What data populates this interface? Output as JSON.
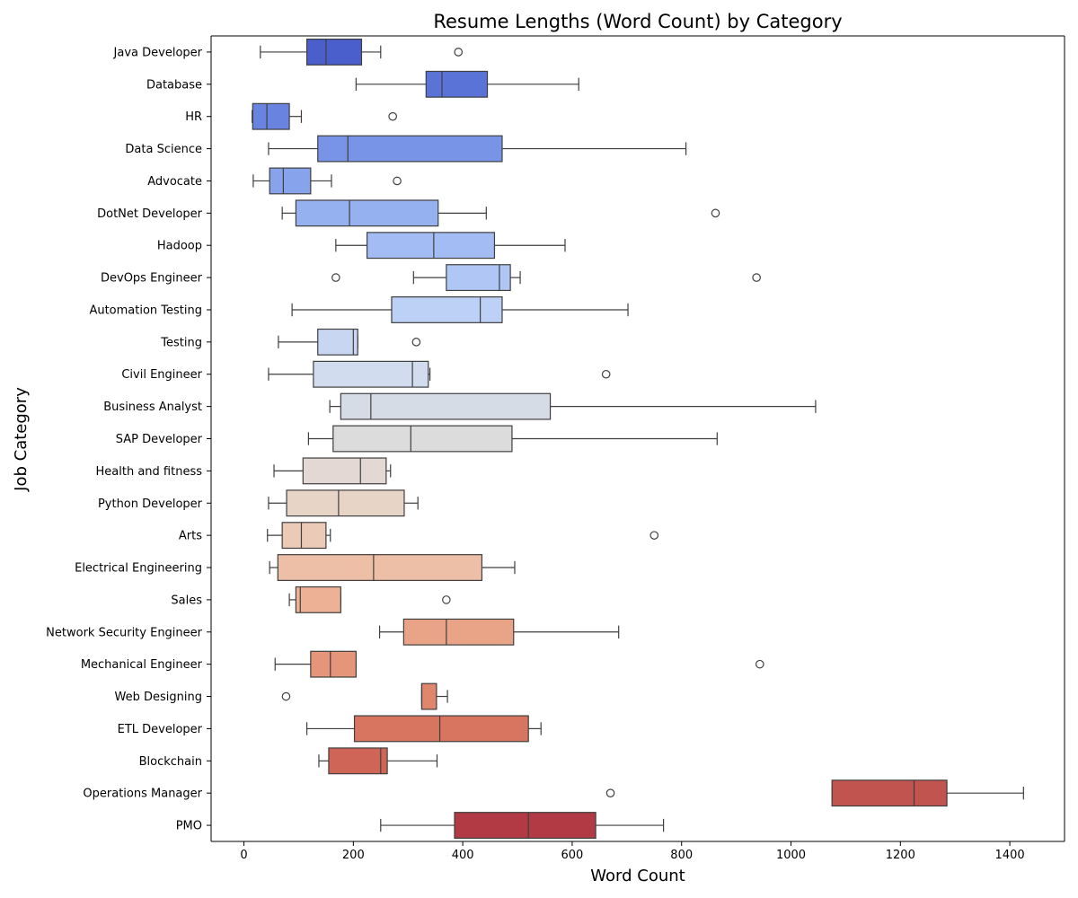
{
  "chart_data": {
    "type": "boxplot",
    "orientation": "horizontal",
    "title": "Resume Lengths (Word Count) by Category",
    "xlabel": "Word Count",
    "ylabel": "Job Category",
    "xlim": [
      -60,
      1500
    ],
    "xticks": [
      0,
      200,
      400,
      600,
      800,
      1000,
      1200,
      1400
    ],
    "grid": false,
    "palette": "coolwarm",
    "categories": [
      {
        "name": "Java Developer",
        "whisker_low": 30,
        "q1": 115,
        "median": 150,
        "q3": 215,
        "whisker_high": 250,
        "outliers": [
          392
        ],
        "color": "#4a5fcb"
      },
      {
        "name": "Database",
        "whisker_low": 205,
        "q1": 333,
        "median": 362,
        "q3": 445,
        "whisker_high": 612,
        "outliers": [],
        "color": "#5a73d6"
      },
      {
        "name": "HR",
        "whisker_low": 15,
        "q1": 16,
        "median": 42,
        "q3": 83,
        "whisker_high": 105,
        "outliers": [
          272
        ],
        "color": "#6884e0"
      },
      {
        "name": "Data Science",
        "whisker_low": 45,
        "q1": 135,
        "median": 190,
        "q3": 472,
        "whisker_high": 808,
        "outliers": [],
        "color": "#7894e6"
      },
      {
        "name": "Advocate",
        "whisker_low": 17,
        "q1": 47,
        "median": 72,
        "q3": 122,
        "whisker_high": 160,
        "outliers": [
          280
        ],
        "color": "#87a3ec"
      },
      {
        "name": "DotNet Developer",
        "whisker_low": 70,
        "q1": 95,
        "median": 193,
        "q3": 355,
        "whisker_high": 443,
        "outliers": [
          862
        ],
        "color": "#95b1f0"
      },
      {
        "name": "Hadoop",
        "whisker_low": 168,
        "q1": 225,
        "median": 347,
        "q3": 458,
        "whisker_high": 587,
        "outliers": [],
        "color": "#a3bdf4"
      },
      {
        "name": "DevOps Engineer",
        "whisker_low": 310,
        "q1": 370,
        "median": 467,
        "q3": 487,
        "whisker_high": 505,
        "outliers": [
          168,
          937
        ],
        "color": "#b0c7f6"
      },
      {
        "name": "Automation Testing",
        "whisker_low": 88,
        "q1": 270,
        "median": 432,
        "q3": 472,
        "whisker_high": 702,
        "outliers": [],
        "color": "#bdd0f5"
      },
      {
        "name": "Testing",
        "whisker_low": 63,
        "q1": 135,
        "median": 200,
        "q3": 208,
        "whisker_high": 208,
        "outliers": [
          315
        ],
        "color": "#c8d6f2"
      },
      {
        "name": "Civil Engineer",
        "whisker_low": 45,
        "q1": 127,
        "median": 308,
        "q3": 337,
        "whisker_high": 340,
        "outliers": [
          662
        ],
        "color": "#d2dcef"
      },
      {
        "name": "Business Analyst",
        "whisker_low": 157,
        "q1": 177,
        "median": 232,
        "q3": 560,
        "whisker_high": 1045,
        "outliers": [],
        "color": "#d6dce6"
      },
      {
        "name": "SAP Developer",
        "whisker_low": 118,
        "q1": 163,
        "median": 305,
        "q3": 490,
        "whisker_high": 865,
        "outliers": [],
        "color": "#dcdcdc"
      },
      {
        "name": "Health and fitness",
        "whisker_low": 55,
        "q1": 108,
        "median": 213,
        "q3": 260,
        "whisker_high": 268,
        "outliers": [],
        "color": "#e3d8d3"
      },
      {
        "name": "Python Developer",
        "whisker_low": 45,
        "q1": 78,
        "median": 173,
        "q3": 293,
        "whisker_high": 318,
        "outliers": [],
        "color": "#e8d3c7"
      },
      {
        "name": "Arts",
        "whisker_low": 43,
        "q1": 70,
        "median": 105,
        "q3": 150,
        "whisker_high": 158,
        "outliers": [
          750
        ],
        "color": "#ebcab8"
      },
      {
        "name": "Electrical Engineering",
        "whisker_low": 47,
        "q1": 62,
        "median": 237,
        "q3": 435,
        "whisker_high": 495,
        "outliers": [],
        "color": "#edbfa7"
      },
      {
        "name": "Sales",
        "whisker_low": 83,
        "q1": 95,
        "median": 103,
        "q3": 177,
        "whisker_high": 177,
        "outliers": [
          370
        ],
        "color": "#edb296"
      },
      {
        "name": "Network Security Engineer",
        "whisker_low": 248,
        "q1": 292,
        "median": 370,
        "q3": 493,
        "whisker_high": 685,
        "outliers": [],
        "color": "#e9a487"
      },
      {
        "name": "Mechanical Engineer",
        "whisker_low": 57,
        "q1": 122,
        "median": 158,
        "q3": 205,
        "whisker_high": 205,
        "outliers": [
          943
        ],
        "color": "#e5957a"
      },
      {
        "name": "Web Designing",
        "whisker_low": 325,
        "q1": 325,
        "median": 325,
        "q3": 352,
        "whisker_high": 372,
        "outliers": [
          77
        ],
        "color": "#e0866c"
      },
      {
        "name": "ETL Developer",
        "whisker_low": 115,
        "q1": 202,
        "median": 358,
        "q3": 520,
        "whisker_high": 543,
        "outliers": [],
        "color": "#d87560"
      },
      {
        "name": "Blockchain",
        "whisker_low": 137,
        "q1": 155,
        "median": 250,
        "q3": 262,
        "whisker_high": 353,
        "outliers": [],
        "color": "#cf6557"
      },
      {
        "name": "Operations Manager",
        "whisker_low": 1075,
        "q1": 1075,
        "median": 1225,
        "q3": 1285,
        "whisker_high": 1425,
        "outliers": [
          670
        ],
        "color": "#c2544f"
      },
      {
        "name": "PMO",
        "whisker_low": 250,
        "q1": 385,
        "median": 520,
        "q3": 643,
        "whisker_high": 767,
        "outliers": [],
        "color": "#b13a44"
      }
    ]
  }
}
